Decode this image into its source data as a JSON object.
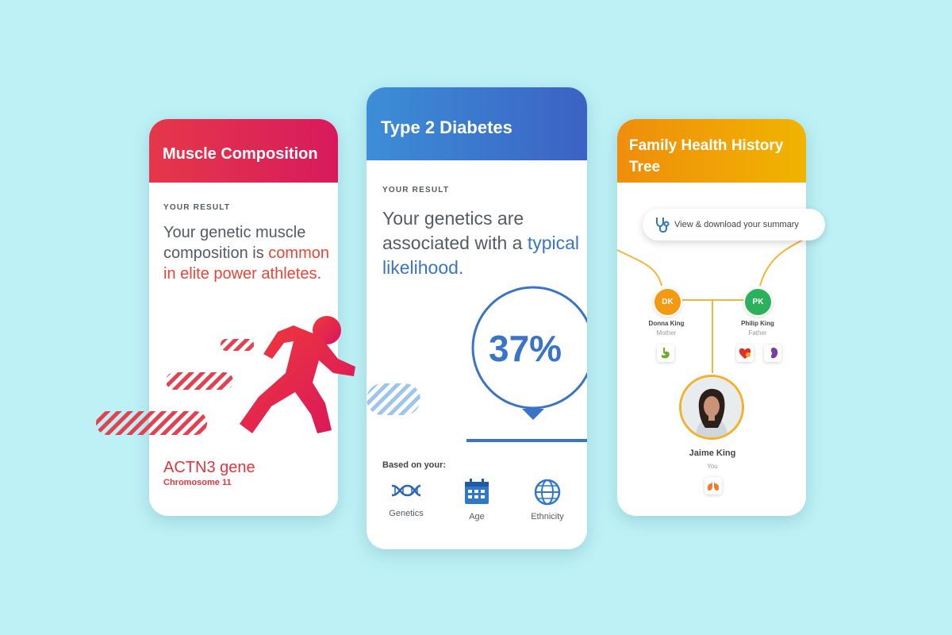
{
  "muscle_card": {
    "title": "Muscle Composition",
    "result_label": "YOUR RESULT",
    "result_text": "Your genetic muscle composition is ",
    "result_highlight": "common in elite power athletes.",
    "gene": "ACTN3 gene",
    "chromosome": "Chromosome 11",
    "accent_color": "#e2353f"
  },
  "diabetes_card": {
    "title": "Type 2 Diabetes",
    "result_label": "YOUR RESULT",
    "result_text": "Your genetics are associated with a ",
    "result_highlight": "typical likelihood.",
    "percent": "37%",
    "based_on_label": "Based on your:",
    "factors": [
      {
        "label": "Genetics",
        "icon": "dna-icon"
      },
      {
        "label": "Age",
        "icon": "calendar-icon"
      },
      {
        "label": "Ethnicity",
        "icon": "globe-icon"
      }
    ],
    "accent_color": "#3a74c9"
  },
  "family_card": {
    "title": "Family Health History Tree",
    "summary_button": "View & download your summary",
    "members": [
      {
        "initials": "DK",
        "name": "Donna King",
        "relation": "Mother",
        "color": "#f39a12"
      },
      {
        "initials": "PK",
        "name": "Philip King",
        "relation": "Father",
        "color": "#2bb05c"
      },
      {
        "name": "Jaime King",
        "relation": "You"
      }
    ],
    "accent_color": "#f0a30a"
  }
}
